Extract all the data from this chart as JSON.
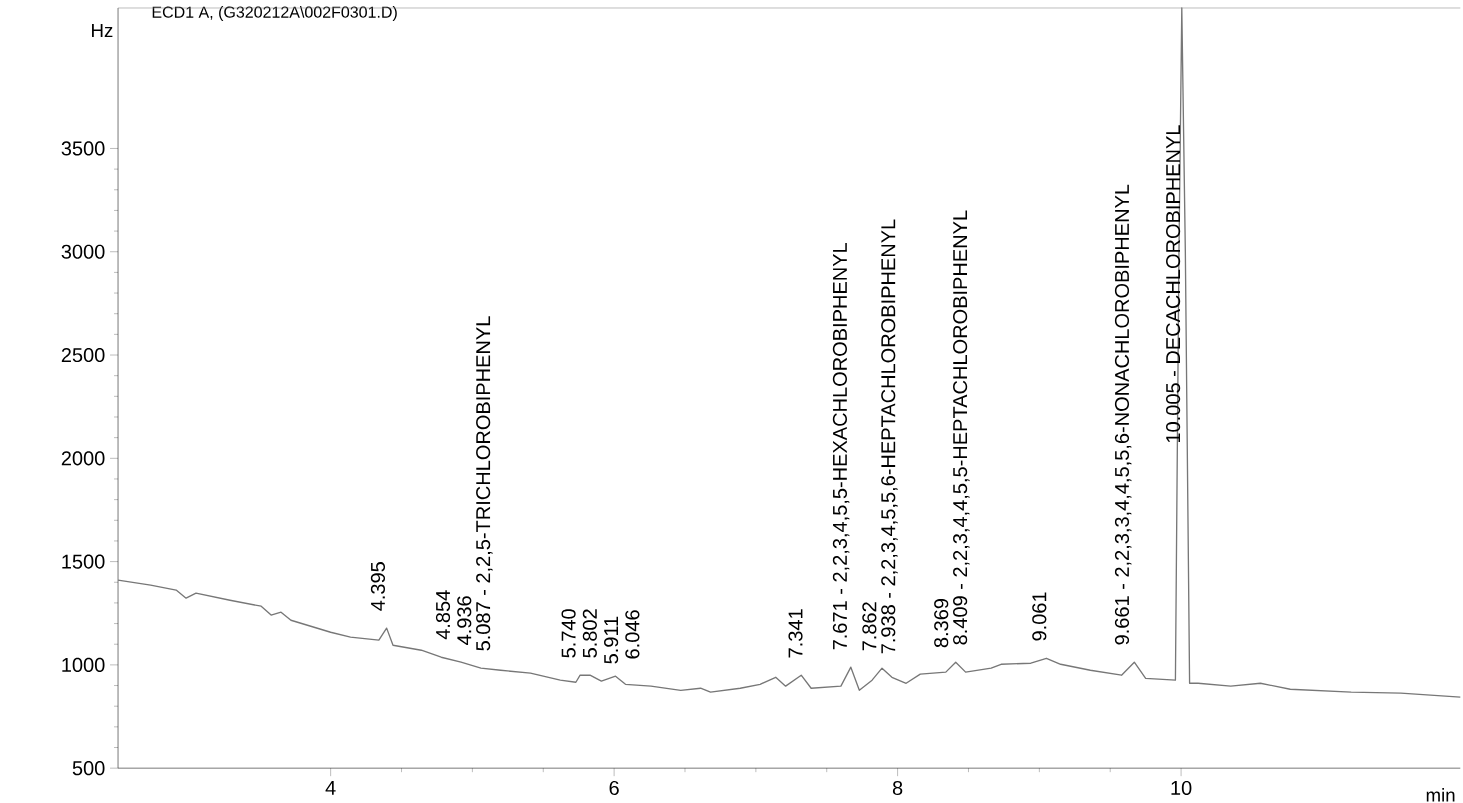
{
  "chart_data": {
    "type": "line",
    "title": "ECD1 A,  (G320212A\\002F0301.D)",
    "xlabel": "min",
    "ylabel": "Hz",
    "x": [
      2.5,
      2.73,
      2.91,
      2.98,
      3.05,
      3.29,
      3.51,
      3.58,
      3.65,
      3.72,
      4.0,
      4.14,
      4.34,
      4.395,
      4.44,
      4.64,
      4.78,
      4.92,
      5.06,
      5.2,
      5.41,
      5.62,
      5.73,
      5.76,
      5.83,
      5.91,
      6.01,
      6.08,
      6.26,
      6.47,
      6.61,
      6.68,
      6.89,
      7.03,
      7.14,
      7.21,
      7.32,
      7.39,
      7.6,
      7.67,
      7.73,
      7.82,
      7.89,
      7.96,
      8.06,
      8.16,
      8.34,
      8.41,
      8.48,
      8.66,
      8.73,
      8.94,
      9.05,
      9.15,
      9.36,
      9.58,
      9.67,
      9.75,
      9.96,
      9.985,
      10.005,
      10.03,
      10.06,
      10.12,
      10.35,
      10.56,
      10.77,
      11.2,
      11.55,
      11.97
    ],
    "series": [
      {
        "color": "#777777",
        "values": [
          1410,
          1386,
          1362,
          1323,
          1347,
          1313,
          1284,
          1241,
          1255,
          1216,
          1158,
          1134,
          1120,
          1178,
          1095,
          1071,
          1037,
          1013,
          984,
          974,
          960,
          926,
          916,
          950,
          950,
          921,
          945,
          906,
          897,
          877,
          887,
          868,
          887,
          906,
          940,
          897,
          950,
          887,
          897,
          989,
          877,
          926,
          984,
          940,
          911,
          955,
          965,
          1013,
          965,
          984,
          1003,
          1008,
          1032,
          1003,
          974,
          950,
          1013,
          935,
          926,
          3000,
          4180,
          3000,
          911,
          911,
          897,
          911,
          882,
          868,
          863,
          844
        ]
      }
    ],
    "xlim": [
      2.5,
      11.97
    ],
    "ylim": [
      500,
      4180
    ],
    "xticks": [
      4,
      6,
      8,
      10
    ],
    "yticks": [
      500,
      1000,
      1500,
      2000,
      2500,
      3000,
      3500
    ],
    "grid": false,
    "marker": "none",
    "line_style": "solid",
    "annotations": [
      {
        "text": "4.395",
        "x": 4.395,
        "y": 1178
      },
      {
        "text": "4.854",
        "x": 4.854,
        "y": 1040
      },
      {
        "text": "4.936",
        "x": 4.936,
        "y": 1013
      },
      {
        "text": "5.087 -  2,2,5-TRICHLOROBIPHENYL",
        "x": 5.087,
        "y": 984
      },
      {
        "text": "5.740",
        "x": 5.74,
        "y": 950
      },
      {
        "text": "5.802",
        "x": 5.802,
        "y": 950
      },
      {
        "text": "5.911",
        "x": 5.911,
        "y": 921
      },
      {
        "text": "6.046",
        "x": 6.046,
        "y": 945
      },
      {
        "text": "7.341",
        "x": 7.341,
        "y": 950
      },
      {
        "text": "7.671 -  2,2,3,4,5,5-HEXACHLOROBIPHENYL",
        "x": 7.671,
        "y": 989
      },
      {
        "text": "7.862",
        "x": 7.862,
        "y": 984
      },
      {
        "text": "7.938 -  2,2,3,4,5,5,6-HEPTACHLOROBIPHENYL",
        "x": 7.938,
        "y": 970
      },
      {
        "text": "8.369",
        "x": 8.369,
        "y": 1000
      },
      {
        "text": "8.409 -  2,2,3,4,4,5,5-HEPTACHLOROBIPHENYL",
        "x": 8.409,
        "y": 1013
      },
      {
        "text": "9.061",
        "x": 9.061,
        "y": 1032
      },
      {
        "text": "9.661 -  2,2,3,3,4,4,5,5,6-NONACHLOROBIPHENYL",
        "x": 9.661,
        "y": 1013
      },
      {
        "text": "10.005 -  DECACHLOROBIPHENYL",
        "x": 10.005,
        "y": 1990
      }
    ]
  }
}
